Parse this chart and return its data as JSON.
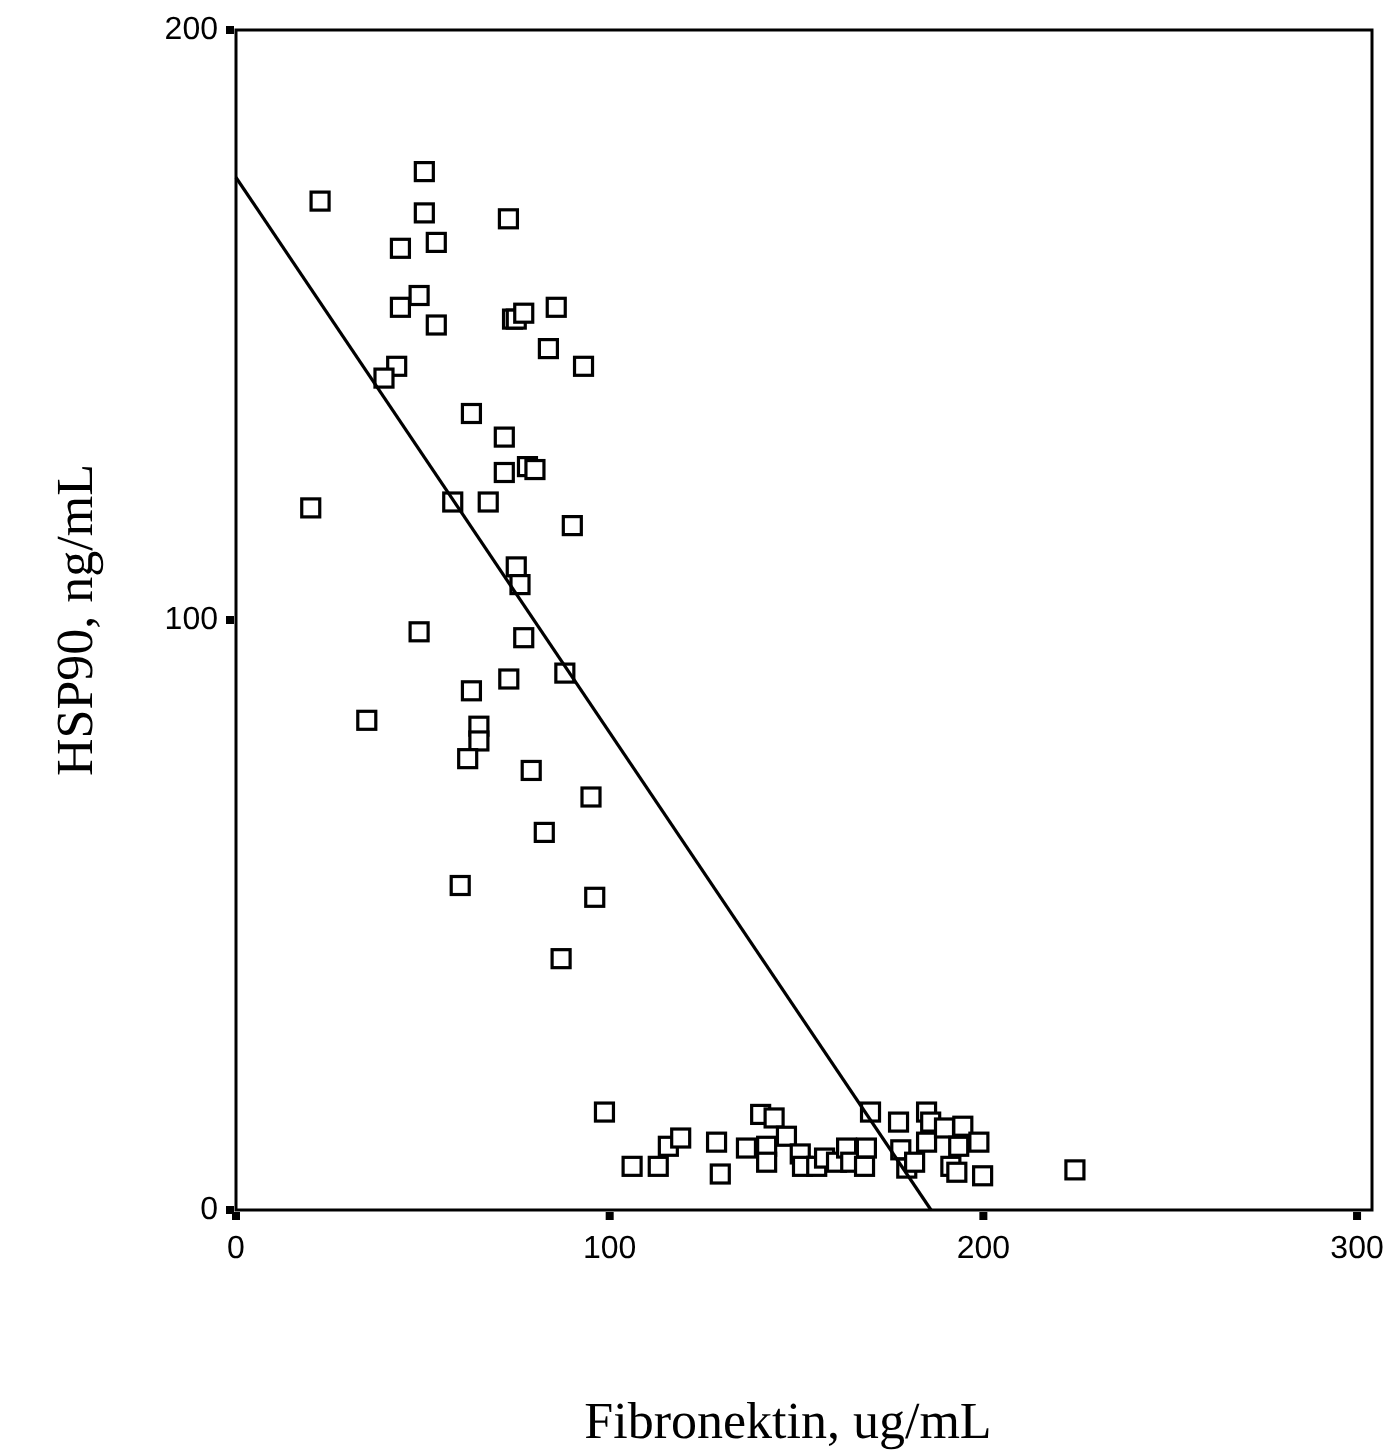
{
  "chart_data": {
    "type": "scatter",
    "xlabel": "Fibronektin, ug/mL",
    "ylabel": "HSP90, ng/mL",
    "xlim": [
      0,
      304
    ],
    "ylim": [
      0,
      200
    ],
    "xticks": [
      0,
      100,
      200,
      300
    ],
    "yticks": [
      0,
      100,
      200
    ],
    "series": [
      {
        "marker": "square",
        "color": "#000000",
        "x": [
          22.5,
          50.4,
          50.4,
          72.9,
          44,
          53.6,
          49,
          44,
          53.6,
          74,
          75,
          77,
          85.7,
          83.6,
          93,
          43,
          39.6,
          63,
          71.8,
          71.8,
          78,
          80,
          58,
          67.5,
          20,
          90,
          75,
          76,
          77,
          49,
          88,
          73,
          63,
          35,
          65,
          65,
          62,
          79,
          95,
          82.5,
          60,
          96,
          87,
          98.6,
          106,
          113,
          115.7,
          119,
          128.6,
          129.6,
          136.6,
          140.4,
          144,
          142,
          142,
          147.3,
          151,
          151.6,
          155.4,
          157.5,
          160.7,
          163.4,
          164.5,
          168.7,
          168.2,
          169.8,
          177.3,
          177.9,
          179.5,
          181.6,
          184.8,
          185.9,
          184.8,
          189.6,
          191.3,
          192.9,
          194.5,
          193.4,
          198.8,
          199.8,
          224.5
        ],
        "values": [
          171,
          176,
          169,
          168,
          163,
          164,
          155,
          153,
          150,
          151,
          151,
          152,
          153,
          146,
          143,
          143,
          141,
          135,
          131,
          125,
          126,
          125.5,
          120,
          120,
          119,
          116,
          109,
          106,
          97,
          98,
          91,
          90,
          88,
          83,
          82,
          79.5,
          76.5,
          74.5,
          70,
          64,
          55,
          53,
          42.6,
          16.6,
          7.4,
          7.4,
          10.8,
          12.2,
          11.5,
          6.1,
          10.5,
          16.2,
          15.6,
          10.8,
          8.1,
          12.5,
          9.5,
          7.4,
          7.4,
          8.8,
          8.1,
          10.5,
          8.1,
          10.5,
          7.4,
          16.6,
          14.9,
          10.2,
          7.1,
          8.1,
          16.6,
          14.9,
          11.5,
          13.9,
          7.4,
          6.4,
          14.2,
          10.8,
          11.5,
          5.8,
          6.8
        ]
      },
      {
        "type": "line",
        "marker": "none",
        "line_style": "solid",
        "color": "#000000",
        "x": [
          0,
          186
        ],
        "values": [
          175,
          0
        ]
      }
    ]
  }
}
